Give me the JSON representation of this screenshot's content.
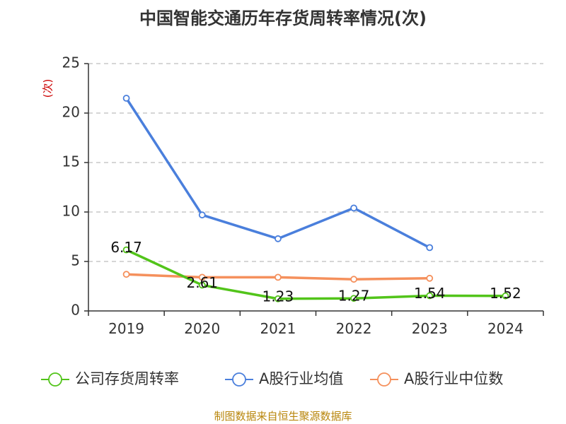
{
  "chart_data": {
    "type": "line",
    "title": "中国智能交通历年存货周转率情况(次)",
    "ylabel": "(次)",
    "xlabel": "",
    "categories": [
      "2019",
      "2020",
      "2021",
      "2022",
      "2023",
      "2024"
    ],
    "ylim": [
      0,
      25
    ],
    "yticks": [
      0,
      5,
      10,
      15,
      20,
      25
    ],
    "grid": true,
    "legend_position": "bottom",
    "series": [
      {
        "name": "公司存货周转率",
        "color": "#52c41a",
        "values": [
          6.17,
          2.61,
          1.23,
          1.27,
          1.54,
          1.52
        ],
        "labels": [
          "6.17",
          "2.61",
          "1.23",
          "1.27",
          "1.54",
          "1.52"
        ]
      },
      {
        "name": "A股行业均值",
        "color": "#4a7fdc",
        "values": [
          21.5,
          9.7,
          7.3,
          10.4,
          6.4,
          null
        ]
      },
      {
        "name": "A股行业中位数",
        "color": "#f5905c",
        "values": [
          3.7,
          3.4,
          3.4,
          3.2,
          3.3,
          null
        ]
      }
    ]
  },
  "source_text": "制图数据来自恒生聚源数据库"
}
